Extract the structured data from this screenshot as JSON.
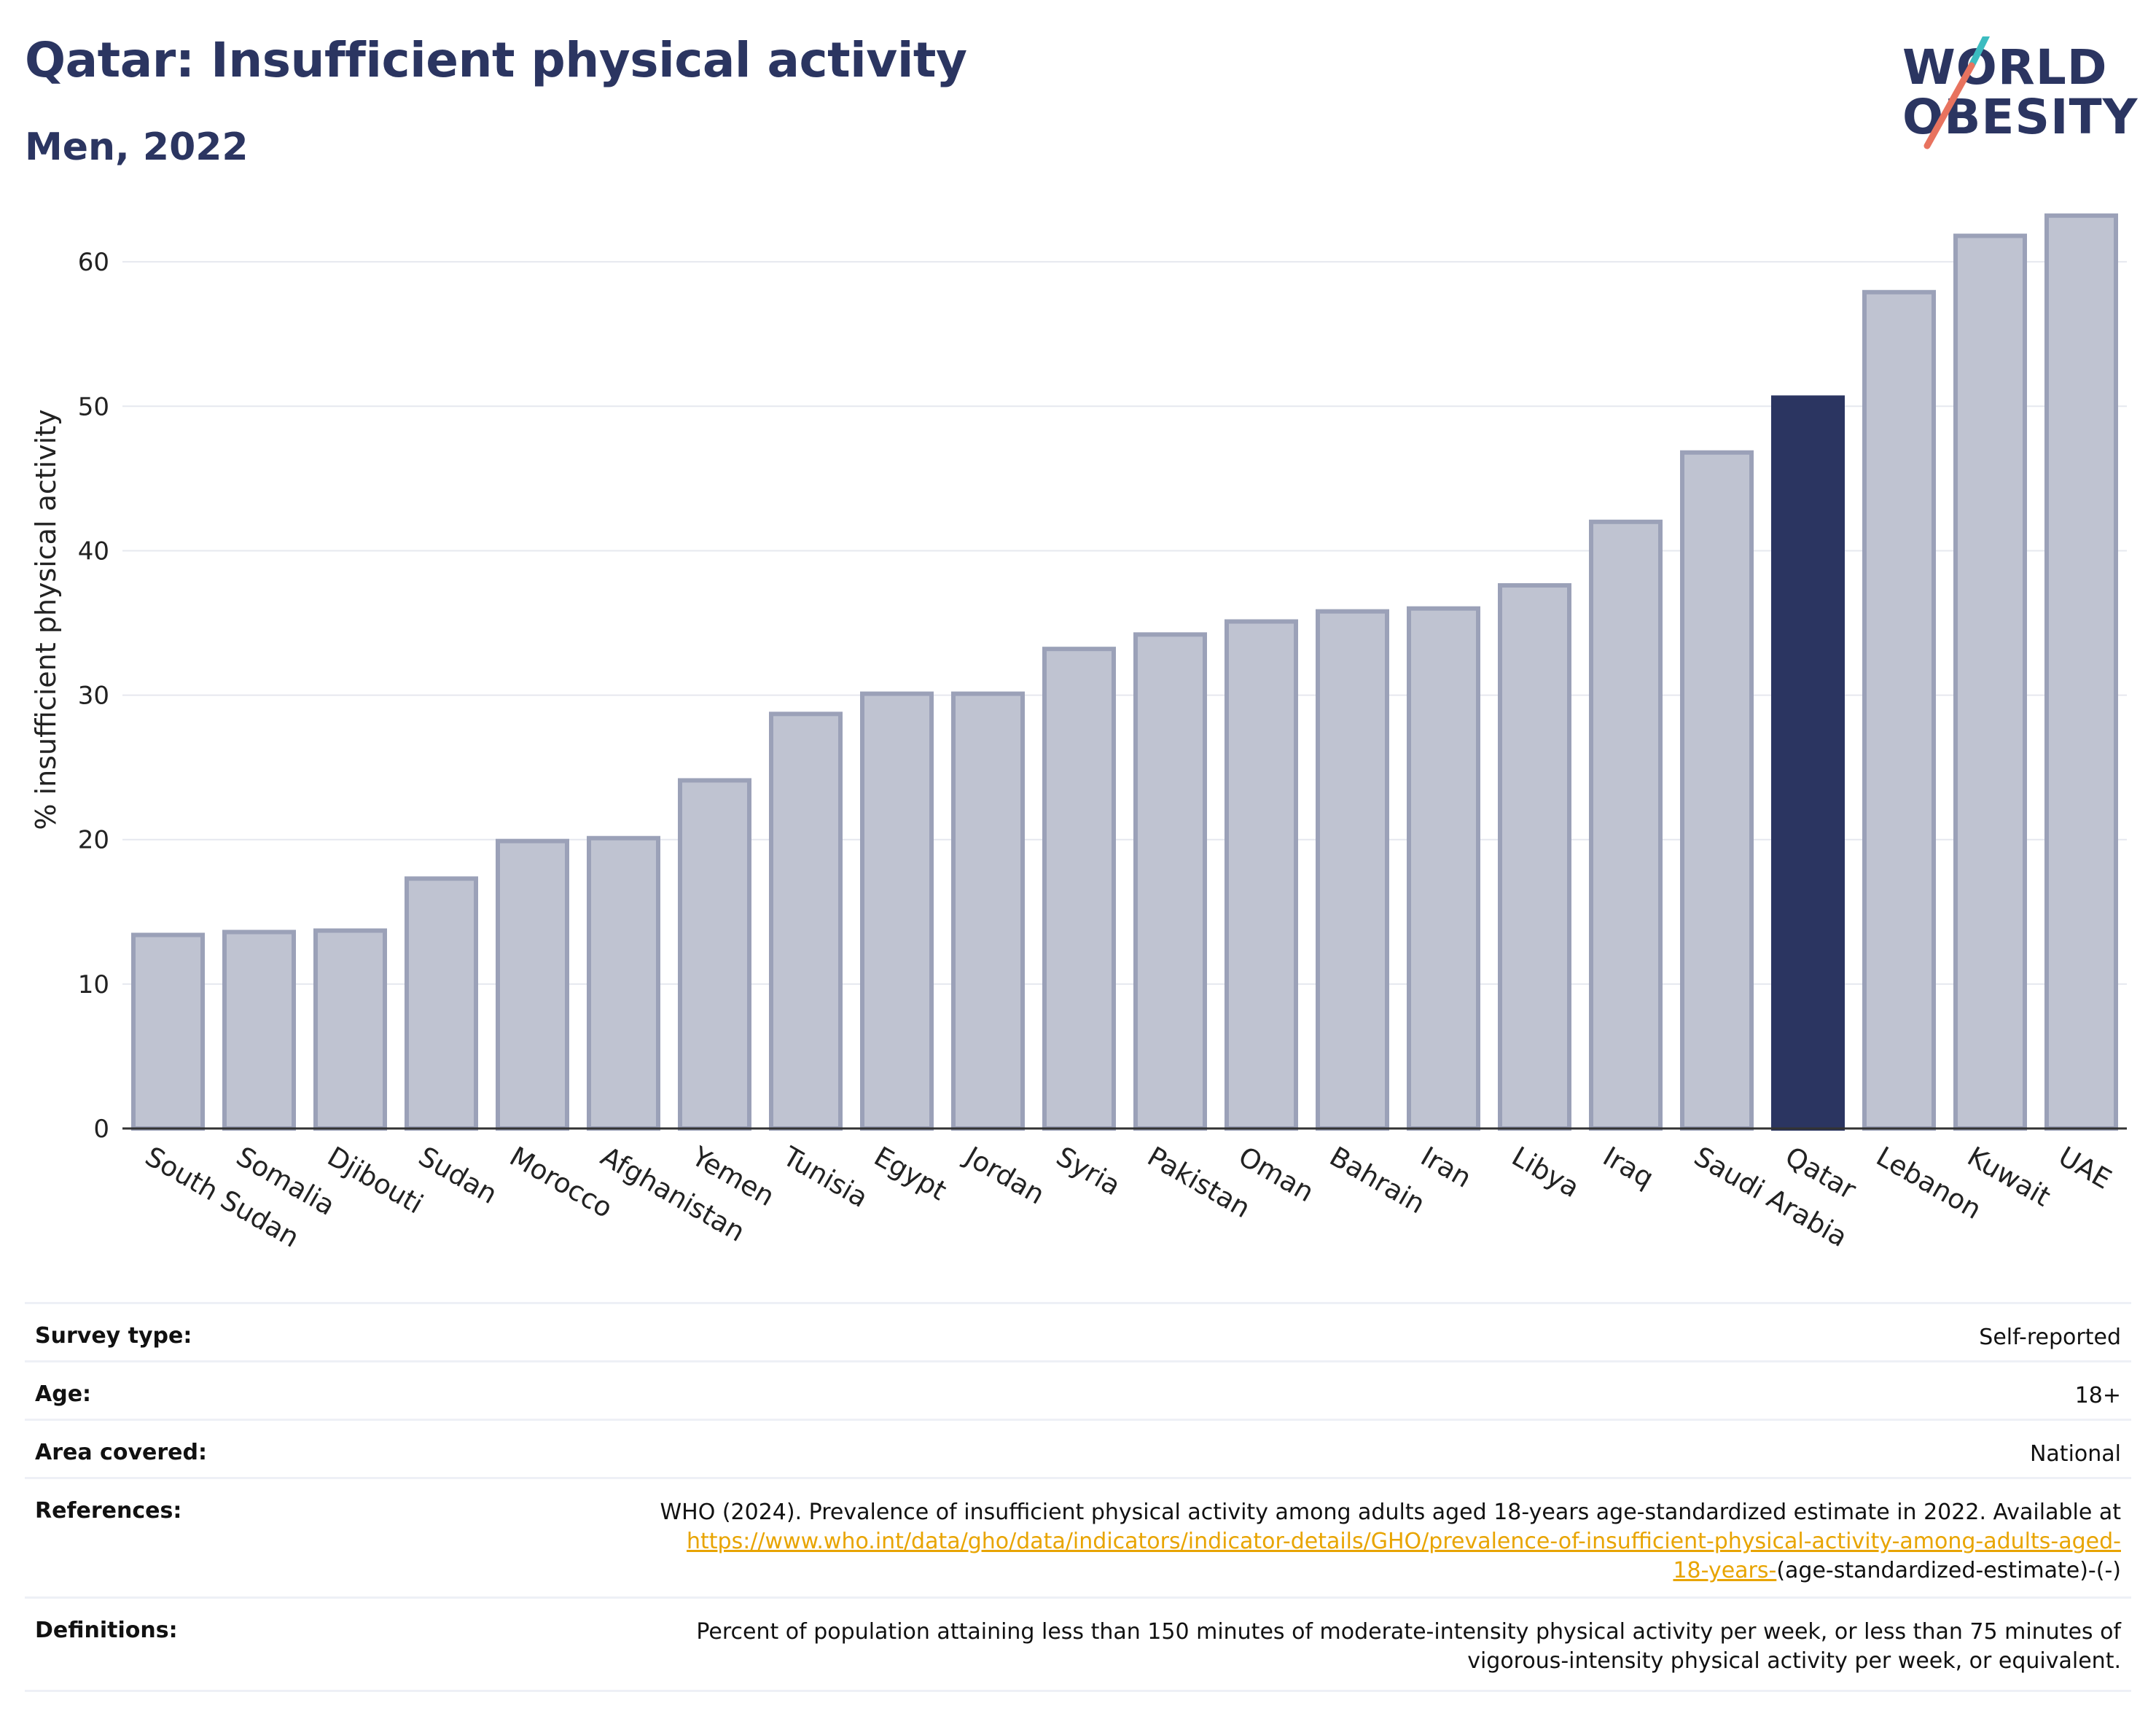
{
  "header": {
    "title": "Qatar: Insufficient physical activity",
    "subtitle": "Men, 2022",
    "logo_line1": "WORLD",
    "logo_line2": "OBESITY"
  },
  "colors": {
    "highlight": "#2b3561",
    "bar": "#bfc3d1",
    "bar_stroke": "#9ba1b8",
    "logo_teal": "#3cbcc0",
    "logo_coral": "#e8735f",
    "link": "#e8a400"
  },
  "chart_data": {
    "type": "bar",
    "ylabel": "% insufficient physical activity",
    "ylim": [
      0,
      64.5
    ],
    "yticks": [
      0,
      10,
      20,
      30,
      40,
      50,
      60
    ],
    "grid": true,
    "highlight": "Qatar",
    "categories": [
      "South Sudan",
      "Somalia",
      "Djibouti",
      "Sudan",
      "Morocco",
      "Afghanistan",
      "Yemen",
      "Tunisia",
      "Egypt",
      "Jordan",
      "Syria",
      "Pakistan",
      "Oman",
      "Bahrain",
      "Iran",
      "Libya",
      "Iraq",
      "Saudi Arabia",
      "Qatar",
      "Lebanon",
      "Kuwait",
      "UAE"
    ],
    "values": [
      13.4,
      13.6,
      13.7,
      17.3,
      19.9,
      20.1,
      24.1,
      28.7,
      30.1,
      30.1,
      33.2,
      34.2,
      35.1,
      35.8,
      36.0,
      37.6,
      42.0,
      46.8,
      50.6,
      57.9,
      61.8,
      63.2
    ]
  },
  "info": {
    "survey_type_label": "Survey type:",
    "survey_type_value": "Self-reported",
    "age_label": "Age:",
    "age_value": "18+",
    "area_label": "Area covered:",
    "area_value": "National",
    "references_label": "References:",
    "references_text": "WHO (2024). Prevalence of insufficient physical activity among adults aged 18-years age-standardized estimate in 2022. Available at",
    "references_link_line1": "https://www.who.int/data/gho/data/indicators/indicator-details/GHO/prevalence-of-insufficient-physical-activity-among-adults-aged-",
    "references_link_line2": "18-years-",
    "references_suffix": "(age-standardized-estimate)-(-)",
    "definitions_label": "Definitions:",
    "definitions_line1": "Percent of population attaining less than 150 minutes of moderate-intensity physical activity per week, or less than 75 minutes of",
    "definitions_line2": "vigorous-intensity physical activity per week, or equivalent."
  }
}
